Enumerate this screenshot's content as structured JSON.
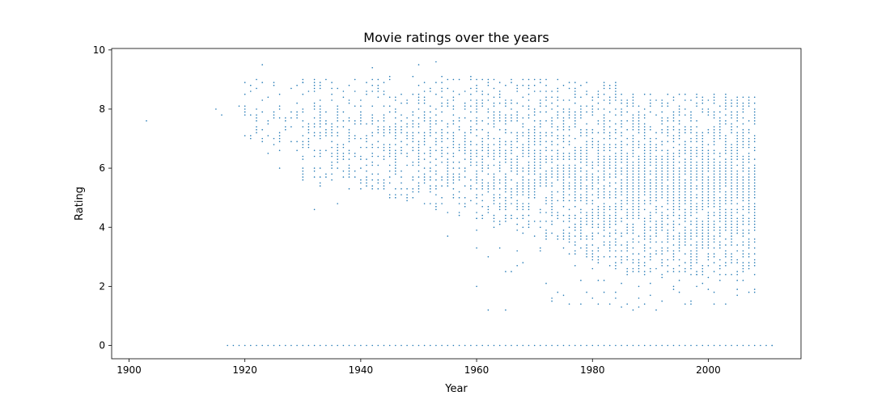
{
  "chart_data": {
    "type": "scatter",
    "title": "Movie ratings over the years",
    "xlabel": "Year",
    "ylabel": "Rating",
    "xlim": [
      1897,
      2016
    ],
    "ylim": [
      -0.45,
      10.05
    ],
    "x_ticks": [
      1900,
      1920,
      1940,
      1960,
      1980,
      2000
    ],
    "x_tick_labels": [
      "1900",
      "1920",
      "1940",
      "1960",
      "1980",
      "2000"
    ],
    "y_ticks": [
      0,
      2,
      4,
      6,
      8,
      10
    ],
    "y_tick_labels": [
      "0",
      "2",
      "4",
      "6",
      "8",
      "10"
    ],
    "grid": false,
    "marker_color": "#1f77b4",
    "marker_size": 0.8,
    "point_count_note": "dense cloud of individual movie ratings (one point per movie) on a 0.1 rating grid, yearly from 1903 to 2011",
    "representative_points": {
      "x": [
        1903,
        1915,
        1916,
        1919,
        1920,
        1920,
        1922,
        1923,
        1923,
        1925,
        1926,
        1928,
        1930,
        1932,
        1934,
        1936,
        1940,
        1942,
        1945,
        1950,
        1953,
        1955,
        1960,
        1965,
        1965,
        1972,
        1980,
        1981,
        1985,
        1988,
        1990,
        1996,
        2000,
        2005,
        2008,
        2011
      ],
      "y": [
        7.6,
        8.0,
        7.8,
        8.1,
        8.9,
        7.9,
        9.0,
        9.5,
        7.0,
        8.8,
        6.0,
        8.7,
        8.9,
        4.6,
        7.5,
        4.8,
        5.3,
        9.4,
        5.0,
        9.5,
        9.6,
        3.7,
        4.3,
        1.2,
        7.5,
        2.1,
        1.6,
        1.4,
        6.5,
        1.3,
        5.5,
        1.4,
        1.9,
        1.7,
        1.8,
        0.0
      ]
    }
  }
}
